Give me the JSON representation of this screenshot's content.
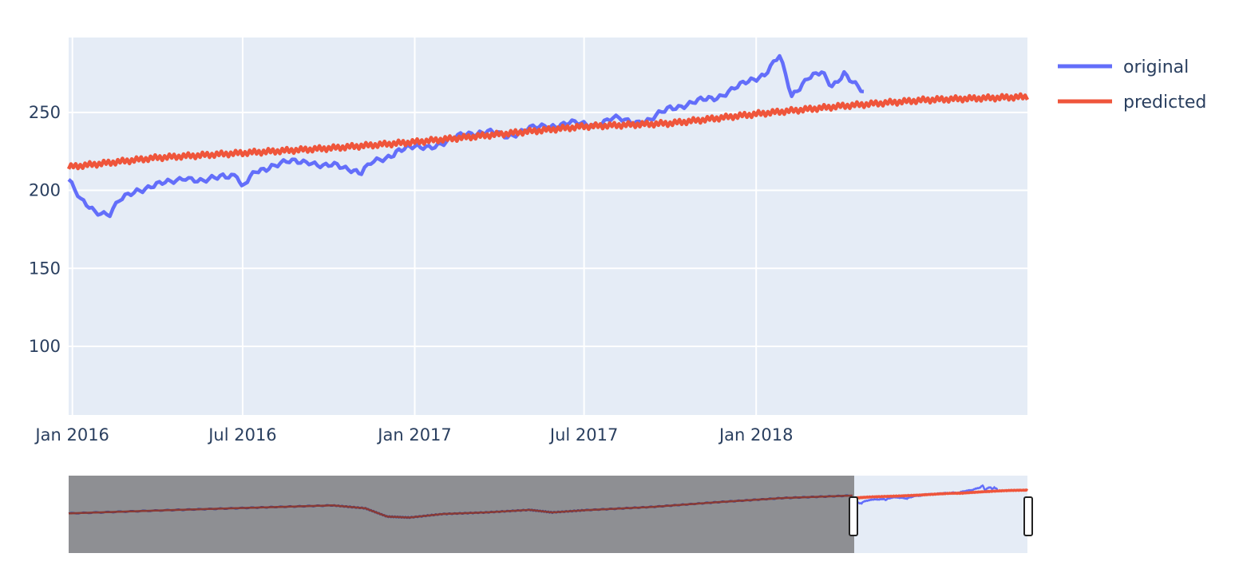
{
  "chart_data": {
    "type": "line",
    "title": "",
    "xlabel": "",
    "ylabel": "",
    "x_range": [
      "2015-12-28",
      "2018-10-18"
    ],
    "x_ticks": [
      {
        "date": "2016-01-01",
        "label": "Jan 2016"
      },
      {
        "date": "2016-07-01",
        "label": "Jul 2016"
      },
      {
        "date": "2017-01-01",
        "label": "Jan 2017"
      },
      {
        "date": "2017-07-01",
        "label": "Jul 2017"
      },
      {
        "date": "2018-01-01",
        "label": "Jan 2018"
      }
    ],
    "ylim": [
      56,
      298
    ],
    "y_ticks": [
      100,
      150,
      200,
      250
    ],
    "grid": true,
    "legend_position": "top-right",
    "series": [
      {
        "name": "original",
        "color": "#636efa",
        "points": [
          [
            "2015-12-28",
            207
          ],
          [
            "2016-01-10",
            193
          ],
          [
            "2016-01-25",
            187
          ],
          [
            "2016-02-10",
            185
          ],
          [
            "2016-02-20",
            193
          ],
          [
            "2016-03-10",
            200
          ],
          [
            "2016-03-25",
            203
          ],
          [
            "2016-04-15",
            205
          ],
          [
            "2016-05-01",
            209
          ],
          [
            "2016-05-20",
            205
          ],
          [
            "2016-06-10",
            210
          ],
          [
            "2016-06-25",
            210
          ],
          [
            "2016-06-30",
            201
          ],
          [
            "2016-07-15",
            212
          ],
          [
            "2016-08-01",
            216
          ],
          [
            "2016-08-20",
            218
          ],
          [
            "2016-09-10",
            219
          ],
          [
            "2016-09-25",
            215
          ],
          [
            "2016-10-10",
            216
          ],
          [
            "2016-10-25",
            214
          ],
          [
            "2016-11-05",
            211
          ],
          [
            "2016-11-15",
            217
          ],
          [
            "2016-12-01",
            221
          ],
          [
            "2016-12-15",
            226
          ],
          [
            "2017-01-10",
            228
          ],
          [
            "2017-02-01",
            230
          ],
          [
            "2017-02-25",
            237
          ],
          [
            "2017-03-20",
            237
          ],
          [
            "2017-04-10",
            235
          ],
          [
            "2017-05-01",
            239
          ],
          [
            "2017-05-20",
            241
          ],
          [
            "2017-06-15",
            243
          ],
          [
            "2017-07-10",
            242
          ],
          [
            "2017-08-01",
            246
          ],
          [
            "2017-08-20",
            244
          ],
          [
            "2017-09-10",
            245
          ],
          [
            "2017-10-01",
            253
          ],
          [
            "2017-10-25",
            256
          ],
          [
            "2017-11-20",
            260
          ],
          [
            "2017-12-15",
            267
          ],
          [
            "2018-01-10",
            275
          ],
          [
            "2018-01-26",
            286
          ],
          [
            "2018-02-08",
            260
          ],
          [
            "2018-02-25",
            273
          ],
          [
            "2018-03-12",
            275
          ],
          [
            "2018-03-23",
            266
          ],
          [
            "2018-04-05",
            276
          ],
          [
            "2018-04-20",
            266
          ],
          [
            "2018-04-26",
            262
          ]
        ]
      },
      {
        "name": "predicted",
        "color": "#ef553b",
        "points": [
          [
            "2015-12-28",
            215
          ],
          [
            "2016-04-01",
            221
          ],
          [
            "2016-07-01",
            224
          ],
          [
            "2016-10-01",
            227
          ],
          [
            "2017-01-01",
            231
          ],
          [
            "2017-04-01",
            236
          ],
          [
            "2017-07-01",
            241
          ],
          [
            "2017-10-01",
            243
          ],
          [
            "2018-01-01",
            249
          ],
          [
            "2018-04-01",
            254
          ],
          [
            "2018-07-01",
            258
          ],
          [
            "2018-10-18",
            260
          ]
        ]
      }
    ],
    "rangeslider": {
      "window_start": "2015-12-28",
      "window_end": "2018-10-18",
      "full_start": "2012-01-01",
      "full_end": "2018-10-18",
      "ylim": [
        56,
        298
      ]
    }
  }
}
